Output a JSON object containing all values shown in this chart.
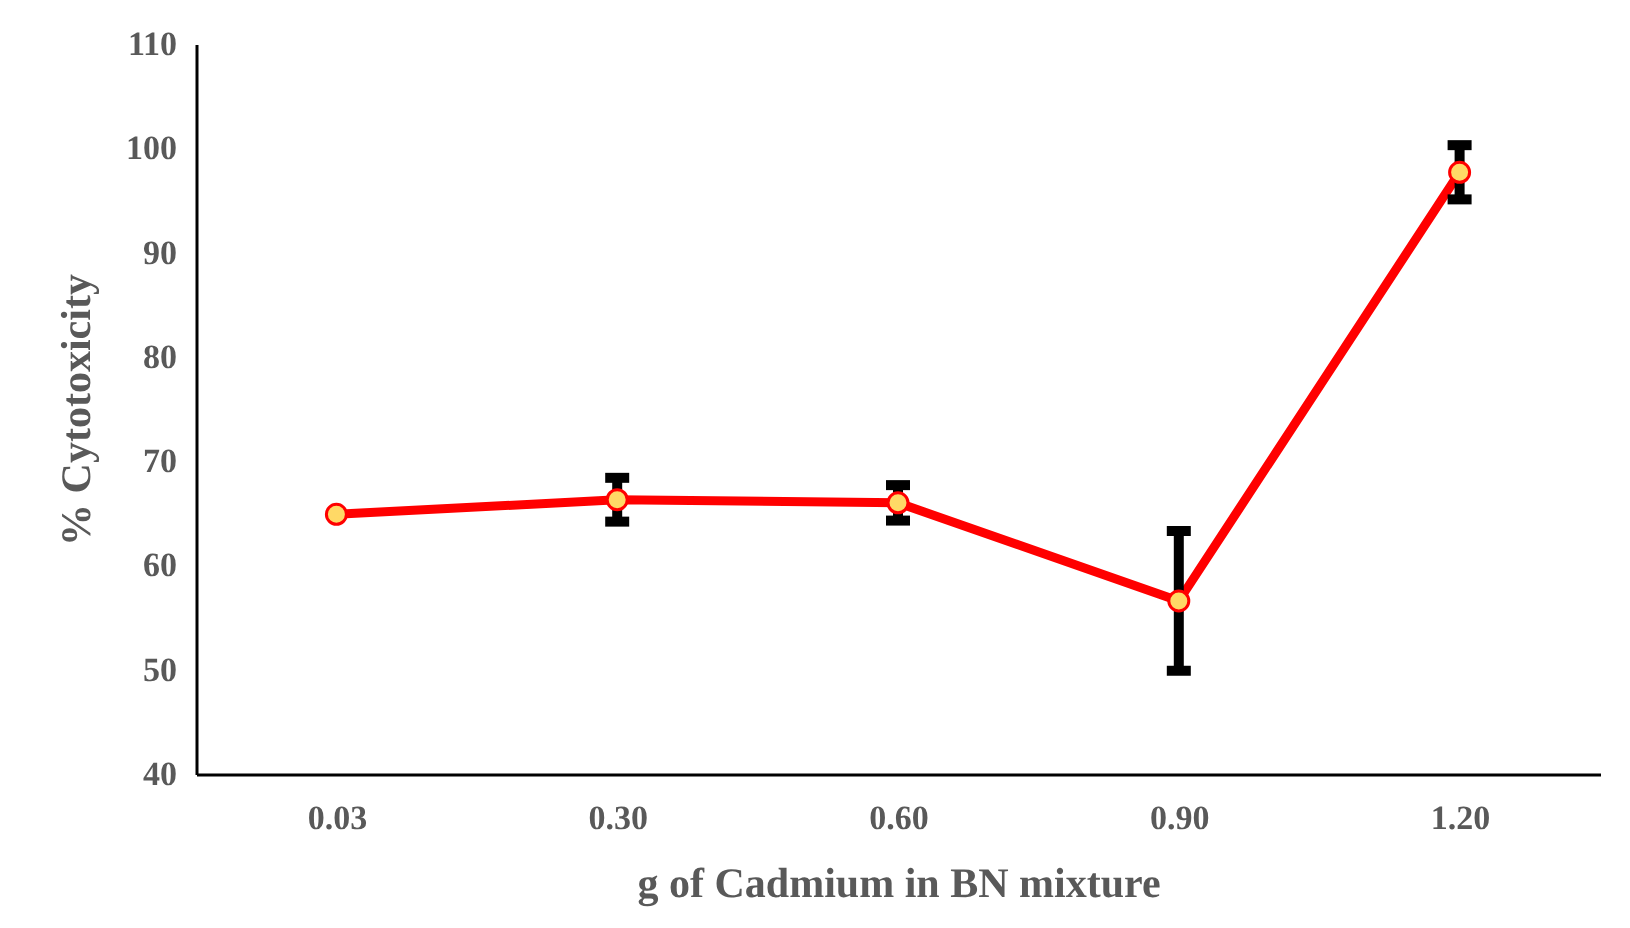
{
  "chart_data": {
    "type": "line",
    "xlabel": "g of Cadmium  in BN mixture",
    "ylabel": "% Cytotoxicity",
    "categories": [
      "0.03",
      "0.30",
      "0.60",
      "0.90",
      "1.20"
    ],
    "series": [
      {
        "color": "#ff0000",
        "values": [
          64.9,
          66.3,
          66.0,
          56.6,
          97.7
        ],
        "errors": [
          null,
          2.1,
          1.7,
          6.7,
          2.6
        ]
      }
    ],
    "ylim": [
      40,
      110
    ],
    "yticks": [
      40,
      50,
      60,
      70,
      80,
      90,
      100,
      110
    ],
    "grid": false,
    "marker": "circle",
    "line_style": "solid"
  }
}
